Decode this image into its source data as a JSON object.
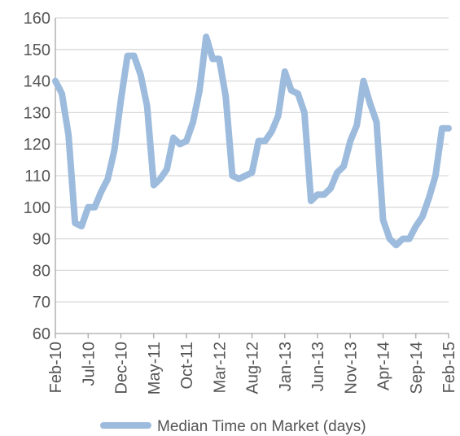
{
  "chart_data": {
    "type": "line",
    "title": "",
    "xlabel": "",
    "ylabel": "",
    "ylim": [
      60,
      160
    ],
    "yticks": [
      60,
      70,
      80,
      90,
      100,
      110,
      120,
      130,
      140,
      150,
      160
    ],
    "grid": true,
    "legend_position": "bottom",
    "x_tick_labels": [
      "Feb-10",
      "Jul-10",
      "Dec-10",
      "May-11",
      "Oct-11",
      "Mar-12",
      "Aug-12",
      "Jan-13",
      "Jun-13",
      "Nov-13",
      "Apr-14",
      "Sep-14",
      "Feb-15"
    ],
    "series": [
      {
        "name": "Median Time on Market (days)",
        "color": "#9dbbdd",
        "x": [
          "Feb-10",
          "Mar-10",
          "Apr-10",
          "May-10",
          "Jun-10",
          "Jul-10",
          "Aug-10",
          "Sep-10",
          "Oct-10",
          "Nov-10",
          "Dec-10",
          "Jan-11",
          "Feb-11",
          "Mar-11",
          "Apr-11",
          "May-11",
          "Jun-11",
          "Jul-11",
          "Aug-11",
          "Sep-11",
          "Oct-11",
          "Nov-11",
          "Dec-11",
          "Jan-12",
          "Feb-12",
          "Mar-12",
          "Apr-12",
          "May-12",
          "Jun-12",
          "Jul-12",
          "Aug-12",
          "Sep-12",
          "Oct-12",
          "Nov-12",
          "Dec-12",
          "Jan-13",
          "Feb-13",
          "Mar-13",
          "Apr-13",
          "May-13",
          "Jun-13",
          "Jul-13",
          "Aug-13",
          "Sep-13",
          "Oct-13",
          "Nov-13",
          "Dec-13",
          "Jan-14",
          "Feb-14",
          "Mar-14",
          "Apr-14",
          "May-14",
          "Jun-14",
          "Jul-14",
          "Aug-14",
          "Sep-14",
          "Oct-14",
          "Nov-14",
          "Dec-14",
          "Jan-15",
          "Feb-15"
        ],
        "values": [
          140,
          136,
          123,
          95,
          94,
          100,
          100,
          105,
          109,
          118,
          134,
          148,
          148,
          142,
          132,
          107,
          109,
          112,
          122,
          120,
          121,
          127,
          137,
          154,
          147,
          147,
          135,
          110,
          109,
          110,
          111,
          121,
          121,
          124,
          129,
          143,
          137,
          136,
          130,
          102,
          104,
          104,
          106,
          111,
          113,
          121,
          126,
          140,
          133,
          127,
          96,
          90,
          88,
          90,
          90,
          94,
          97,
          103,
          110,
          125,
          125
        ]
      }
    ]
  }
}
